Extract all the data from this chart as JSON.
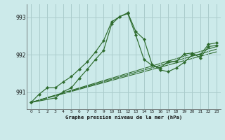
{
  "title": "Graphe pression niveau de la mer (hPa)",
  "bg_color": "#cceaea",
  "grid_color": "#aacccc",
  "line_color": "#2d6b2d",
  "xlim": [
    -0.5,
    23.5
  ],
  "ylim": [
    990.55,
    993.35
  ],
  "yticks": [
    991,
    992,
    993
  ],
  "xticks": [
    0,
    1,
    2,
    3,
    4,
    5,
    6,
    7,
    8,
    9,
    10,
    11,
    12,
    13,
    14,
    15,
    16,
    17,
    18,
    19,
    20,
    21,
    22,
    23
  ],
  "line1_x": [
    0,
    1,
    2,
    3,
    4,
    5,
    6,
    7,
    8,
    9,
    10,
    11,
    12,
    13,
    14,
    15,
    16,
    17,
    18,
    19,
    20,
    21,
    22,
    23
  ],
  "line1_y": [
    990.73,
    990.95,
    991.12,
    991.12,
    991.28,
    991.42,
    991.62,
    991.82,
    992.08,
    992.38,
    992.88,
    993.02,
    993.1,
    992.52,
    991.88,
    991.72,
    991.65,
    991.82,
    991.82,
    992.02,
    992.05,
    991.92,
    992.22,
    992.25
  ],
  "line2_x": [
    0,
    3,
    4,
    5,
    6,
    7,
    8,
    9,
    10,
    11,
    12,
    13,
    14,
    15,
    16,
    17,
    18,
    19,
    20,
    21,
    22,
    23
  ],
  "line2_y": [
    990.73,
    990.85,
    991.02,
    991.12,
    991.38,
    991.62,
    991.88,
    992.12,
    992.82,
    993.02,
    993.12,
    992.62,
    992.42,
    991.75,
    991.6,
    991.55,
    991.65,
    991.8,
    992.0,
    992.0,
    992.28,
    992.32
  ],
  "trend_lines": [
    {
      "x": [
        0,
        23
      ],
      "y": [
        990.73,
        992.08
      ]
    },
    {
      "x": [
        0,
        23
      ],
      "y": [
        990.73,
        992.15
      ]
    },
    {
      "x": [
        0,
        23
      ],
      "y": [
        990.73,
        992.22
      ]
    }
  ]
}
